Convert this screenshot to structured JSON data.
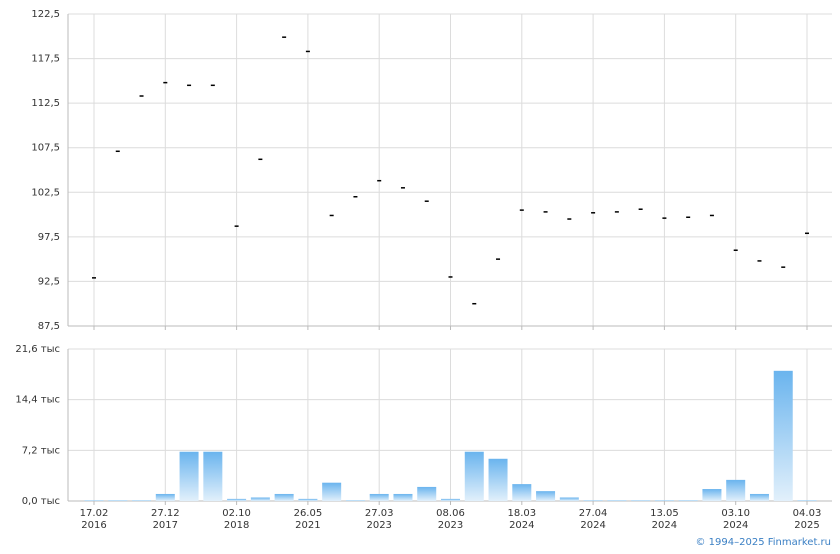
{
  "chart_data": [
    {
      "type": "price",
      "values": [
        92.9,
        107.1,
        113.3,
        114.8,
        114.5,
        114.5,
        98.7,
        106.2,
        119.9,
        118.3,
        99.9,
        102.0,
        103.8,
        103.0,
        101.5,
        93.0,
        90.0,
        95.0,
        100.5,
        100.3,
        99.5,
        100.2,
        100.3,
        100.6,
        99.6,
        99.7,
        99.9,
        96.0,
        94.8,
        94.1,
        97.9
      ],
      "color": "#000000",
      "ylim": [
        87.5,
        122.5
      ],
      "yticks": [
        {
          "value": 87.5,
          "label": "87,5"
        },
        {
          "value": 92.5,
          "label": "92,5"
        },
        {
          "value": 97.5,
          "label": "97,5"
        },
        {
          "value": 102.5,
          "label": "102,5"
        },
        {
          "value": 107.5,
          "label": "107,5"
        },
        {
          "value": 112.5,
          "label": "112,5"
        },
        {
          "value": 117.5,
          "label": "117,5"
        },
        {
          "value": 122.5,
          "label": "122,5"
        }
      ],
      "grid": true
    },
    {
      "type": "bar",
      "categories": [
        "17.02\n2016",
        null,
        null,
        "27.12\n2017",
        null,
        null,
        "02.10\n2018",
        null,
        null,
        "26.05\n2021",
        null,
        null,
        "27.03\n2023",
        null,
        null,
        "08.06\n2023",
        null,
        null,
        "18.03\n2024",
        null,
        null,
        "27.04\n2024",
        null,
        null,
        "13.05\n2024",
        null,
        null,
        "03.10\n2024",
        null,
        null,
        "04.03\n2025"
      ],
      "values": [
        0.1,
        0.1,
        0.1,
        1.0,
        7.0,
        7.0,
        0.3,
        0.5,
        1.0,
        0.3,
        2.6,
        0.1,
        1.0,
        1.0,
        2.0,
        0.3,
        7.0,
        6.0,
        2.4,
        1.4,
        0.5,
        0.1,
        0.1,
        0.1,
        0.1,
        0.1,
        1.7,
        3.0,
        1.0,
        18.5,
        0.1
      ],
      "color": "#6ab4ee",
      "ylim": [
        0,
        21.6
      ],
      "yticks": [
        {
          "value": 0,
          "label": "0,0 тыс"
        },
        {
          "value": 7.2,
          "label": "7,2 тыс"
        },
        {
          "value": 14.4,
          "label": "14,4 тыс"
        },
        {
          "value": 21.6,
          "label": "21,6 тыс"
        }
      ],
      "grid": true,
      "source": "© 1994–2025 Finmarket.ru"
    }
  ]
}
